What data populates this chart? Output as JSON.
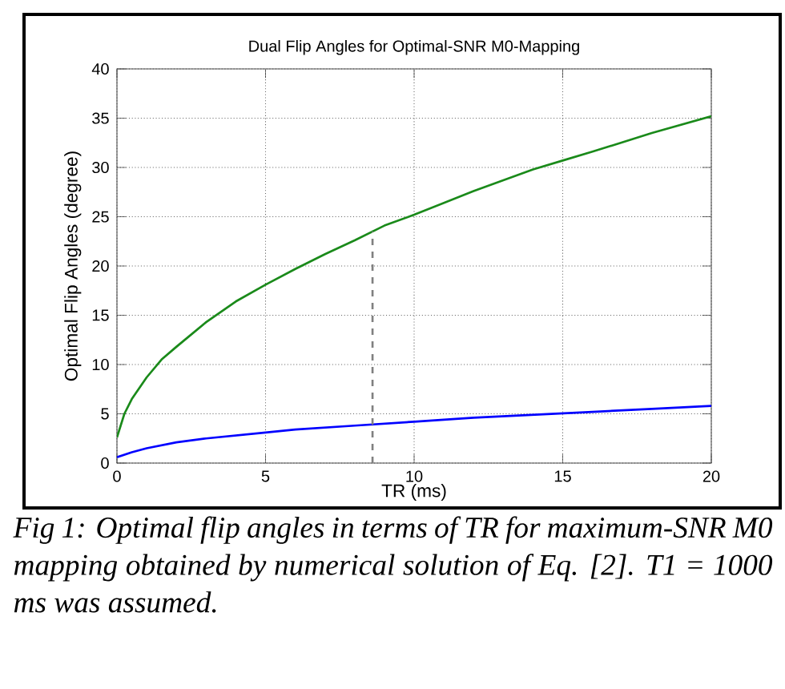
{
  "chart_data": {
    "type": "line",
    "title": "Dual Flip Angles for Optimal-SNR M0-Mapping",
    "xlabel": "TR (ms)",
    "ylabel": "Optimal Flip Angles (degree)",
    "xlim": [
      0,
      20
    ],
    "xticks": [
      0,
      5,
      10,
      15,
      20
    ],
    "ylim": [
      0,
      40
    ],
    "yticks": [
      0,
      5,
      10,
      15,
      20,
      25,
      30,
      35,
      40
    ],
    "grid": true,
    "series": [
      {
        "color": "#1a8a1a",
        "x": [
          0,
          0.25,
          0.5,
          1,
          1.5,
          2,
          3,
          4,
          5,
          6,
          7,
          8,
          9,
          10,
          12,
          14,
          15,
          16,
          18,
          20
        ],
        "values": [
          2.6,
          5,
          6.5,
          8.7,
          10.5,
          11.8,
          14.3,
          16.4,
          18.1,
          19.7,
          21.2,
          22.6,
          24.1,
          25.2,
          27.6,
          29.8,
          30.7,
          31.6,
          33.5,
          35.2
        ]
      },
      {
        "color": "#0000ff",
        "x": [
          0,
          0.5,
          1,
          2,
          3,
          4,
          5,
          6,
          7,
          8,
          10,
          12,
          14,
          16,
          18,
          20
        ],
        "values": [
          0.6,
          1.1,
          1.5,
          2.1,
          2.5,
          2.8,
          3.1,
          3.4,
          3.6,
          3.8,
          4.2,
          4.6,
          4.9,
          5.2,
          5.5,
          5.8
        ]
      },
      {
        "color": "#808080",
        "line_style": "dashed",
        "x": [
          8.6,
          8.6
        ],
        "values": [
          0,
          23.5
        ]
      }
    ],
    "annotations": [
      "Fig 1: Optimal flip angles in terms of TR for maximum-SNR M0 mapping obtained by numerical solution of Eq. [2]. T1 = 1000 ms was assumed."
    ]
  }
}
